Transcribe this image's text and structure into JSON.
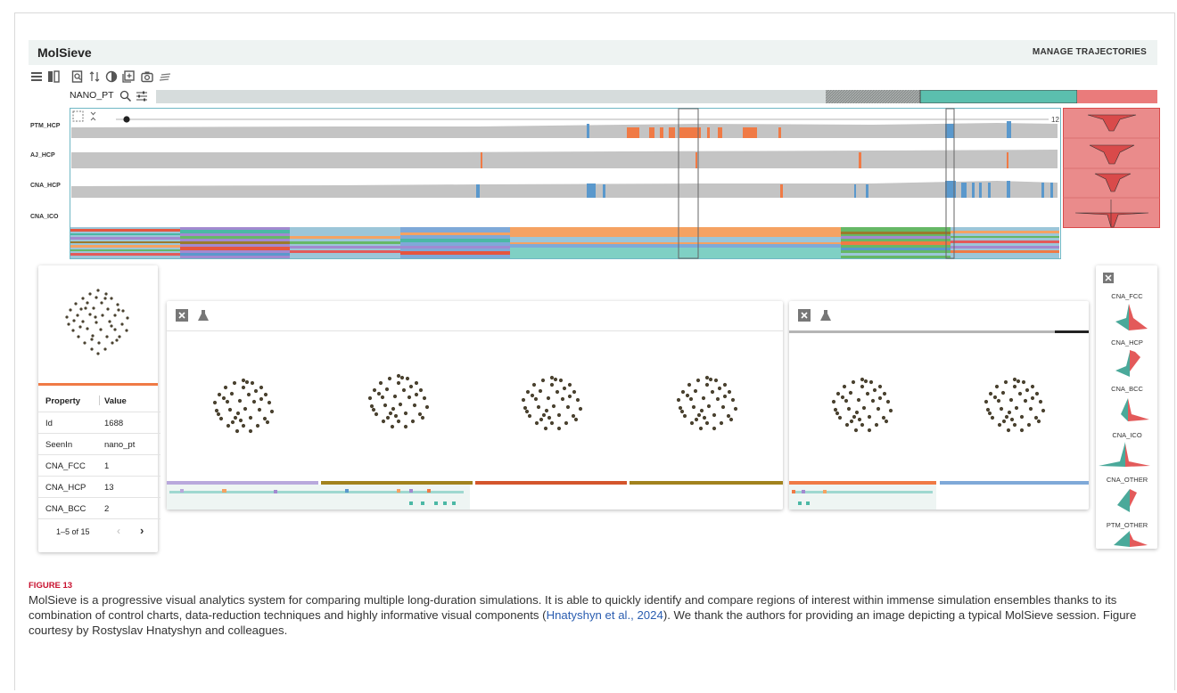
{
  "app": {
    "title": "MolSieve",
    "manage_label": "MANAGE TRAJECTORIES"
  },
  "toolbar": {
    "icons": [
      "list-icon",
      "split-view-icon",
      "zoom-page-icon",
      "sort-icon",
      "contrast-icon",
      "add-box-icon",
      "camera-icon",
      "menu-lines-icon"
    ]
  },
  "trajectory": {
    "name": "NANO_PT",
    "slider_max": "12",
    "tracks": [
      "PTM_HCP",
      "AJ_HCP",
      "CNA_HCP",
      "CNA_ICO"
    ]
  },
  "colors": {
    "orange": "#f07a45",
    "blue": "#5a98cc",
    "teal": "#4bb8a5",
    "red": "#e35a5a",
    "gray": "#c4c4c4"
  },
  "state_panel": {
    "headers": [
      "Property",
      "Value"
    ],
    "rows": [
      {
        "property": "Id",
        "value": "1688"
      },
      {
        "property": "SeenIn",
        "value": "nano_pt"
      },
      {
        "property": "CNA_FCC",
        "value": "1"
      },
      {
        "property": "CNA_HCP",
        "value": "13"
      },
      {
        "property": "CNA_BCC",
        "value": "2"
      }
    ],
    "pagination": "1–5 of 15"
  },
  "comparison": {
    "panel_a_count": 4,
    "panel_b_count": 2
  },
  "violins": [
    "CNA_FCC",
    "CNA_HCP",
    "CNA_BCC",
    "CNA_ICO",
    "CNA_OTHER",
    "PTM_OTHER"
  ],
  "figure": {
    "label": "FIGURE 13",
    "caption_before": "MolSieve is a progressive visual analytics system for comparing multiple long-duration simulations. It is able to quickly identify and compare regions of interest within immense simulation ensembles thanks to its combination of control charts, data-reduction techniques and highly informative visual components (",
    "citation": "Hnatyshyn et al., 2024",
    "caption_after": "). We thank the authors for providing an image depicting a typical MolSieve session. Figure courtesy by Rostyslav Hnatyshyn and colleagues."
  }
}
